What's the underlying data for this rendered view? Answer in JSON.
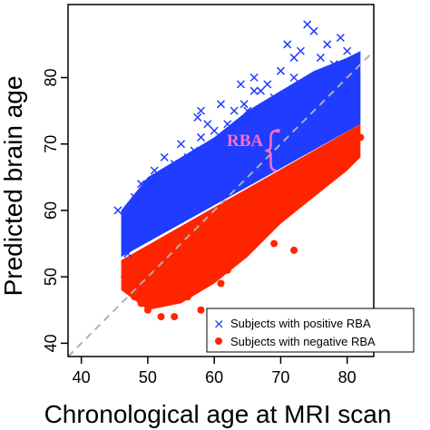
{
  "chart_data": {
    "type": "scatter",
    "title": "",
    "xlabel": "Chronological age at MRI scan",
    "ylabel": "Predicted brain age",
    "xlim": [
      38,
      84
    ],
    "ylim": [
      38,
      91
    ],
    "xticks": [
      40,
      50,
      60,
      70,
      80
    ],
    "yticks": [
      40,
      50,
      60,
      70,
      80
    ],
    "grid": false,
    "reference_line": {
      "style": "dashed",
      "color": "#b0b0b0",
      "equation": "y = x"
    },
    "legend_position": "bottom-right",
    "annotation": {
      "text": "RBA",
      "color": "#ff6ec7",
      "x": 68.5,
      "y_from": 66,
      "y_to": 72
    },
    "series": [
      {
        "name": "Subjects with positive RBA",
        "marker": "x",
        "color": "#1f3cff",
        "points": [
          [
            45.5,
            60
          ],
          [
            47,
            53.5
          ],
          [
            47.5,
            58
          ],
          [
            48,
            62
          ],
          [
            49,
            64
          ],
          [
            50,
            63
          ],
          [
            51,
            66
          ],
          [
            52,
            65
          ],
          [
            52.5,
            68
          ],
          [
            53,
            64
          ],
          [
            54,
            67
          ],
          [
            55,
            70
          ],
          [
            56,
            68
          ],
          [
            57,
            69
          ],
          [
            57.5,
            74
          ],
          [
            58,
            71
          ],
          [
            59,
            73
          ],
          [
            60,
            72
          ],
          [
            61,
            76
          ],
          [
            62,
            73
          ],
          [
            62.5,
            71
          ],
          [
            63,
            75
          ],
          [
            64,
            79
          ],
          [
            64.5,
            76
          ],
          [
            65,
            75
          ],
          [
            66,
            80
          ],
          [
            67,
            78
          ],
          [
            68,
            79
          ],
          [
            69,
            77
          ],
          [
            70,
            81
          ],
          [
            71,
            85
          ],
          [
            72,
            80
          ],
          [
            73,
            84
          ],
          [
            74,
            88
          ],
          [
            75,
            87
          ],
          [
            76,
            83
          ],
          [
            77,
            85
          ],
          [
            78,
            82
          ],
          [
            79,
            86
          ],
          [
            80,
            84
          ],
          [
            72,
            83
          ],
          [
            66,
            78
          ],
          [
            58,
            75
          ]
        ],
        "cloud_lower_bound": [
          [
            46,
            53
          ],
          [
            82,
            73
          ]
        ],
        "cloud_upper_bound": [
          [
            46,
            60
          ],
          [
            50,
            65
          ],
          [
            55,
            68
          ],
          [
            60,
            71
          ],
          [
            65,
            75
          ],
          [
            70,
            78
          ],
          [
            75,
            81
          ],
          [
            80,
            83
          ],
          [
            82,
            84
          ]
        ]
      },
      {
        "name": "Subjects with negative RBA",
        "marker": "o",
        "color": "#ff2400",
        "points": [
          [
            46.5,
            50
          ],
          [
            47,
            48
          ],
          [
            48,
            47
          ],
          [
            49,
            46
          ],
          [
            50,
            45
          ],
          [
            51,
            46
          ],
          [
            52,
            44
          ],
          [
            53,
            47
          ],
          [
            54,
            44
          ],
          [
            55,
            48
          ],
          [
            56,
            47
          ],
          [
            57,
            49
          ],
          [
            58,
            45
          ],
          [
            59,
            50
          ],
          [
            60,
            51
          ],
          [
            61,
            49
          ],
          [
            62,
            51
          ],
          [
            63,
            53
          ],
          [
            64,
            53
          ],
          [
            65,
            55
          ],
          [
            66,
            55
          ],
          [
            67,
            56
          ],
          [
            68,
            58
          ],
          [
            69,
            59
          ],
          [
            70,
            61
          ],
          [
            71,
            62
          ],
          [
            72,
            63
          ],
          [
            73,
            64
          ],
          [
            74,
            66
          ],
          [
            75,
            64
          ],
          [
            76,
            66
          ],
          [
            77,
            68
          ],
          [
            78,
            69
          ],
          [
            79,
            70
          ],
          [
            80,
            71
          ],
          [
            81,
            69
          ],
          [
            82,
            71
          ],
          [
            72,
            54
          ],
          [
            69,
            55
          ]
        ],
        "cloud_upper_bound": [
          [
            46,
            52.5
          ],
          [
            82,
            73
          ]
        ],
        "cloud_lower_bound": [
          [
            46,
            48
          ],
          [
            50,
            45
          ],
          [
            55,
            46
          ],
          [
            60,
            49
          ],
          [
            65,
            53
          ],
          [
            70,
            58
          ],
          [
            75,
            62
          ],
          [
            80,
            66
          ],
          [
            82,
            68
          ]
        ]
      }
    ]
  }
}
